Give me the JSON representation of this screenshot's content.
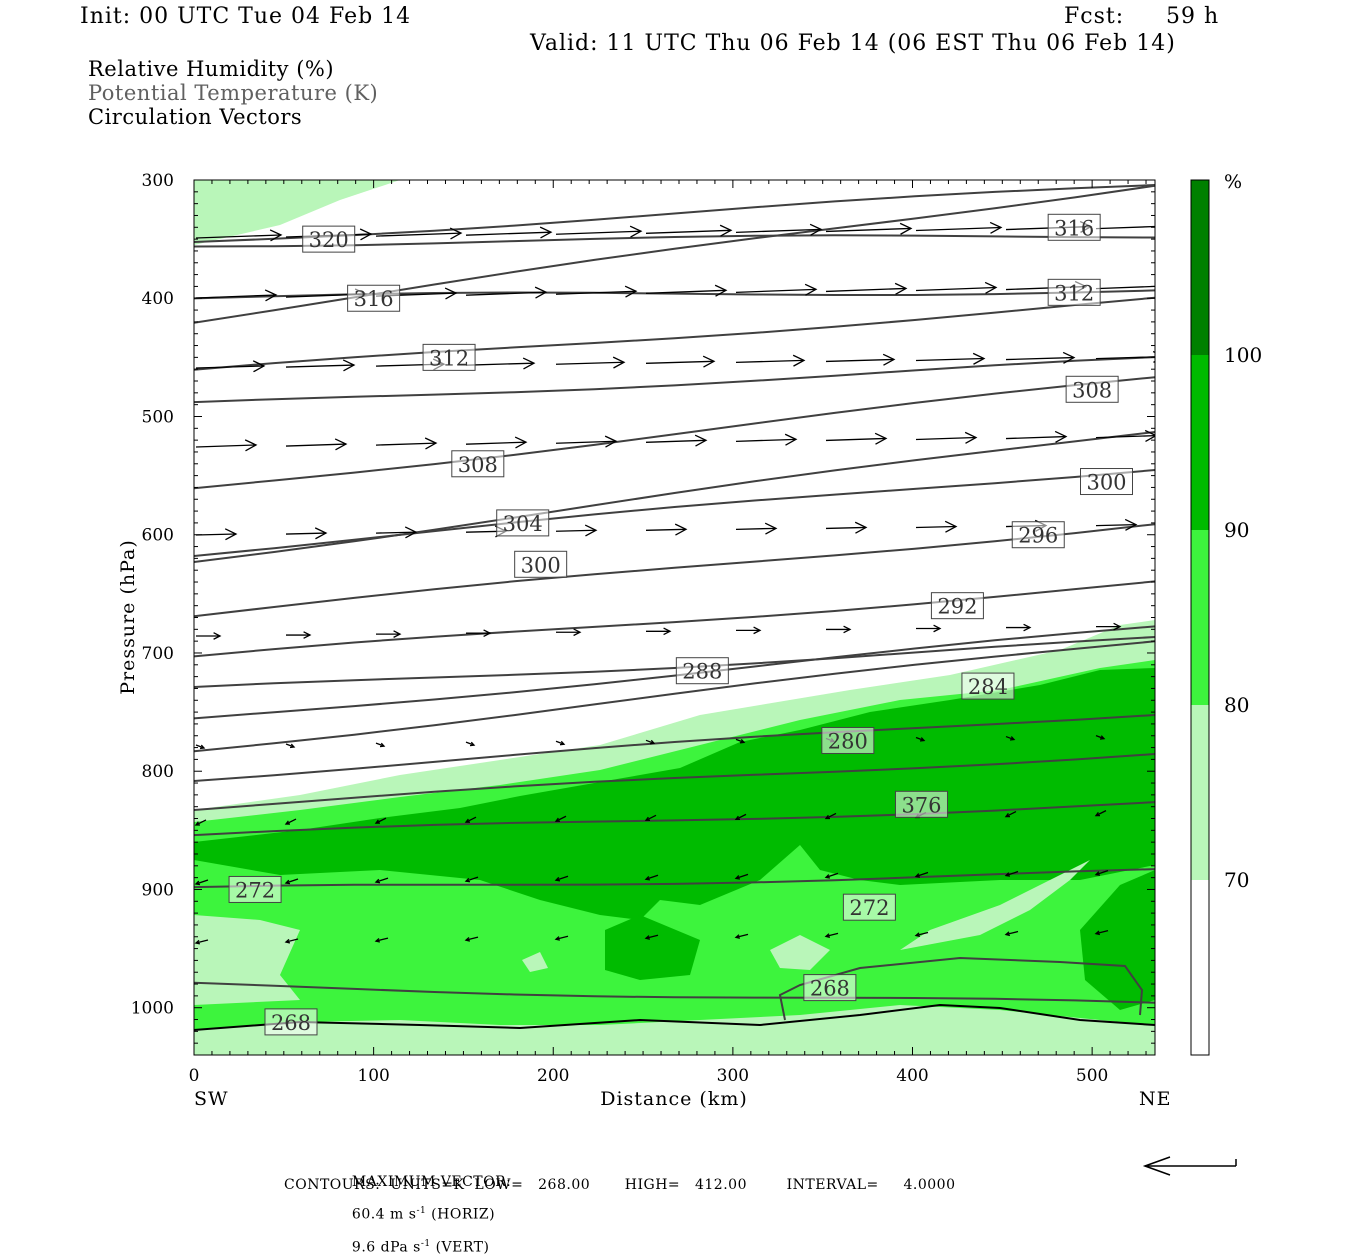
{
  "header": {
    "init": "Init: 00 UTC Tue 04 Feb 14",
    "fcst_label": "Fcst:",
    "fcst_value": "59 h",
    "valid": "Valid: 11 UTC Thu 06 Feb 14 (06 EST Thu 06 Feb 14)"
  },
  "legend": {
    "rh": "Relative Humidity (%)",
    "theta": "Potential Temperature (K)",
    "vectors": "Circulation Vectors"
  },
  "colors": {
    "rh_70_80": "#b9f6b9",
    "rh_80_90": "#3df43d",
    "rh_90_100": "#00bb00",
    "rh_100": "#008000",
    "theta_line": "#404040",
    "vector": "#000000"
  },
  "chart_data": {
    "type": "contour",
    "xlabel": "Distance (km)",
    "ylabel": "Pressure (hPa)",
    "xlim": [
      0,
      535
    ],
    "ylim": [
      1040,
      300
    ],
    "x_ticks": [
      "0",
      "100",
      "200",
      "300",
      "400",
      "500"
    ],
    "y_ticks": [
      "300",
      "400",
      "500",
      "600",
      "700",
      "800",
      "900",
      "1000"
    ],
    "x_endpoints": {
      "left": "SW",
      "right": "NE"
    },
    "colorbar": {
      "unit": "%",
      "levels": [
        "70",
        "80",
        "90",
        "100"
      ]
    },
    "theta_contour_labels": [
      {
        "text": "320",
        "x": 75,
        "p": 350
      },
      {
        "text": "316",
        "x": 100,
        "p": 400
      },
      {
        "text": "312",
        "x": 142,
        "p": 450
      },
      {
        "text": "308",
        "x": 158,
        "p": 540
      },
      {
        "text": "304",
        "x": 183,
        "p": 590
      },
      {
        "text": "300",
        "x": 193,
        "p": 625
      },
      {
        "text": "288",
        "x": 283,
        "p": 715
      },
      {
        "text": "292",
        "x": 425,
        "p": 660
      },
      {
        "text": "284",
        "x": 442,
        "p": 728
      },
      {
        "text": "280",
        "x": 364,
        "p": 774
      },
      {
        "text": "376",
        "x": 405,
        "p": 828
      },
      {
        "text": "272",
        "x": 34,
        "p": 900
      },
      {
        "text": "272",
        "x": 376,
        "p": 915
      },
      {
        "text": "268",
        "x": 354,
        "p": 983
      },
      {
        "text": "268",
        "x": 54,
        "p": 1012
      },
      {
        "text": "316",
        "x": 490,
        "p": 340
      },
      {
        "text": "312",
        "x": 490,
        "p": 395
      },
      {
        "text": "308",
        "x": 500,
        "p": 477
      },
      {
        "text": "300",
        "x": 508,
        "p": 555
      },
      {
        "text": "296",
        "x": 470,
        "p": 600
      }
    ],
    "contours": {
      "theta_units": "K",
      "low": "268.00",
      "high": "412.00",
      "interval": "4.0000"
    }
  },
  "footer": {
    "max_vector_label": "MAXIMUM VECTOR:",
    "max_vector_horiz": "60.4 m s",
    "max_vector_horiz_exp": "-1",
    "max_vector_horiz_tail": " (HORIZ)",
    "max_vector_vert": "9.6 dPa s",
    "max_vector_vert_exp": "-1",
    "max_vector_vert_tail": " (VERT)",
    "contours_line": "CONTOURS:  UNITS=K  LOW=   268.00       HIGH=   412.00        INTERVAL=     4.0000"
  }
}
